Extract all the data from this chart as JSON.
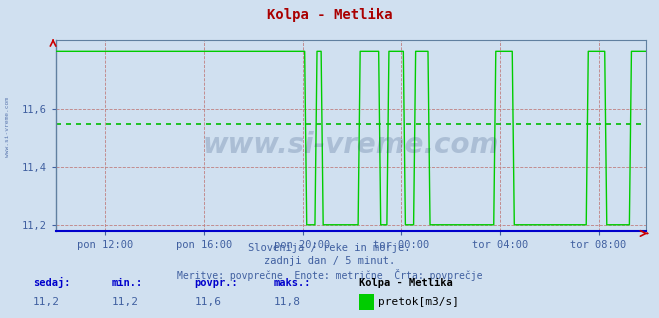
{
  "title": "Kolpa - Metlika",
  "title_color": "#aa0000",
  "bg_color": "#d0e0f0",
  "plot_bg_color": "#d0e0f0",
  "border_color": "#6080a0",
  "grid_color_h": "#c08080",
  "grid_color_v": "#c08080",
  "ylabel_color": "#4060a0",
  "xlabel_color": "#4060a0",
  "line_color": "#00cc00",
  "avg_line_color": "#00bb00",
  "axis_color_x": "#0000cc",
  "axis_color_y": "#6080a0",
  "ymin": 11.2,
  "ymax": 11.8,
  "yticks": [
    11.2,
    11.4,
    11.6
  ],
  "avg_value": 11.55,
  "xtick_labels": [
    "pon 12:00",
    "pon 16:00",
    "pon 20:00",
    "tor 00:00",
    "tor 04:00",
    "tor 08:00"
  ],
  "footer_line1": "Slovenija / reke in morje.",
  "footer_line2": "zadnji dan / 5 minut.",
  "footer_line3": "Meritve: povprečne  Enote: metrične  Črta: povprečje",
  "footer_color": "#4060a0",
  "legend_station": "Kolpa - Metlika",
  "legend_label": "pretok[m3/s]",
  "legend_color": "#00cc00",
  "sedaj_label": "sedaj:",
  "min_label": "min.:",
  "povpr_label": "povpr.:",
  "maks_label": "maks.:",
  "sedaj_val": "11,2",
  "min_val": "11,2",
  "povpr_val": "11,6",
  "maks_val": "11,8",
  "label_color": "#0000cc",
  "value_color": "#4060a0",
  "watermark": "www.si-vreme.com",
  "watermark_color": "#1a3a6a",
  "left_label": "www.si-vreme.com",
  "left_label_color": "#4060a0"
}
